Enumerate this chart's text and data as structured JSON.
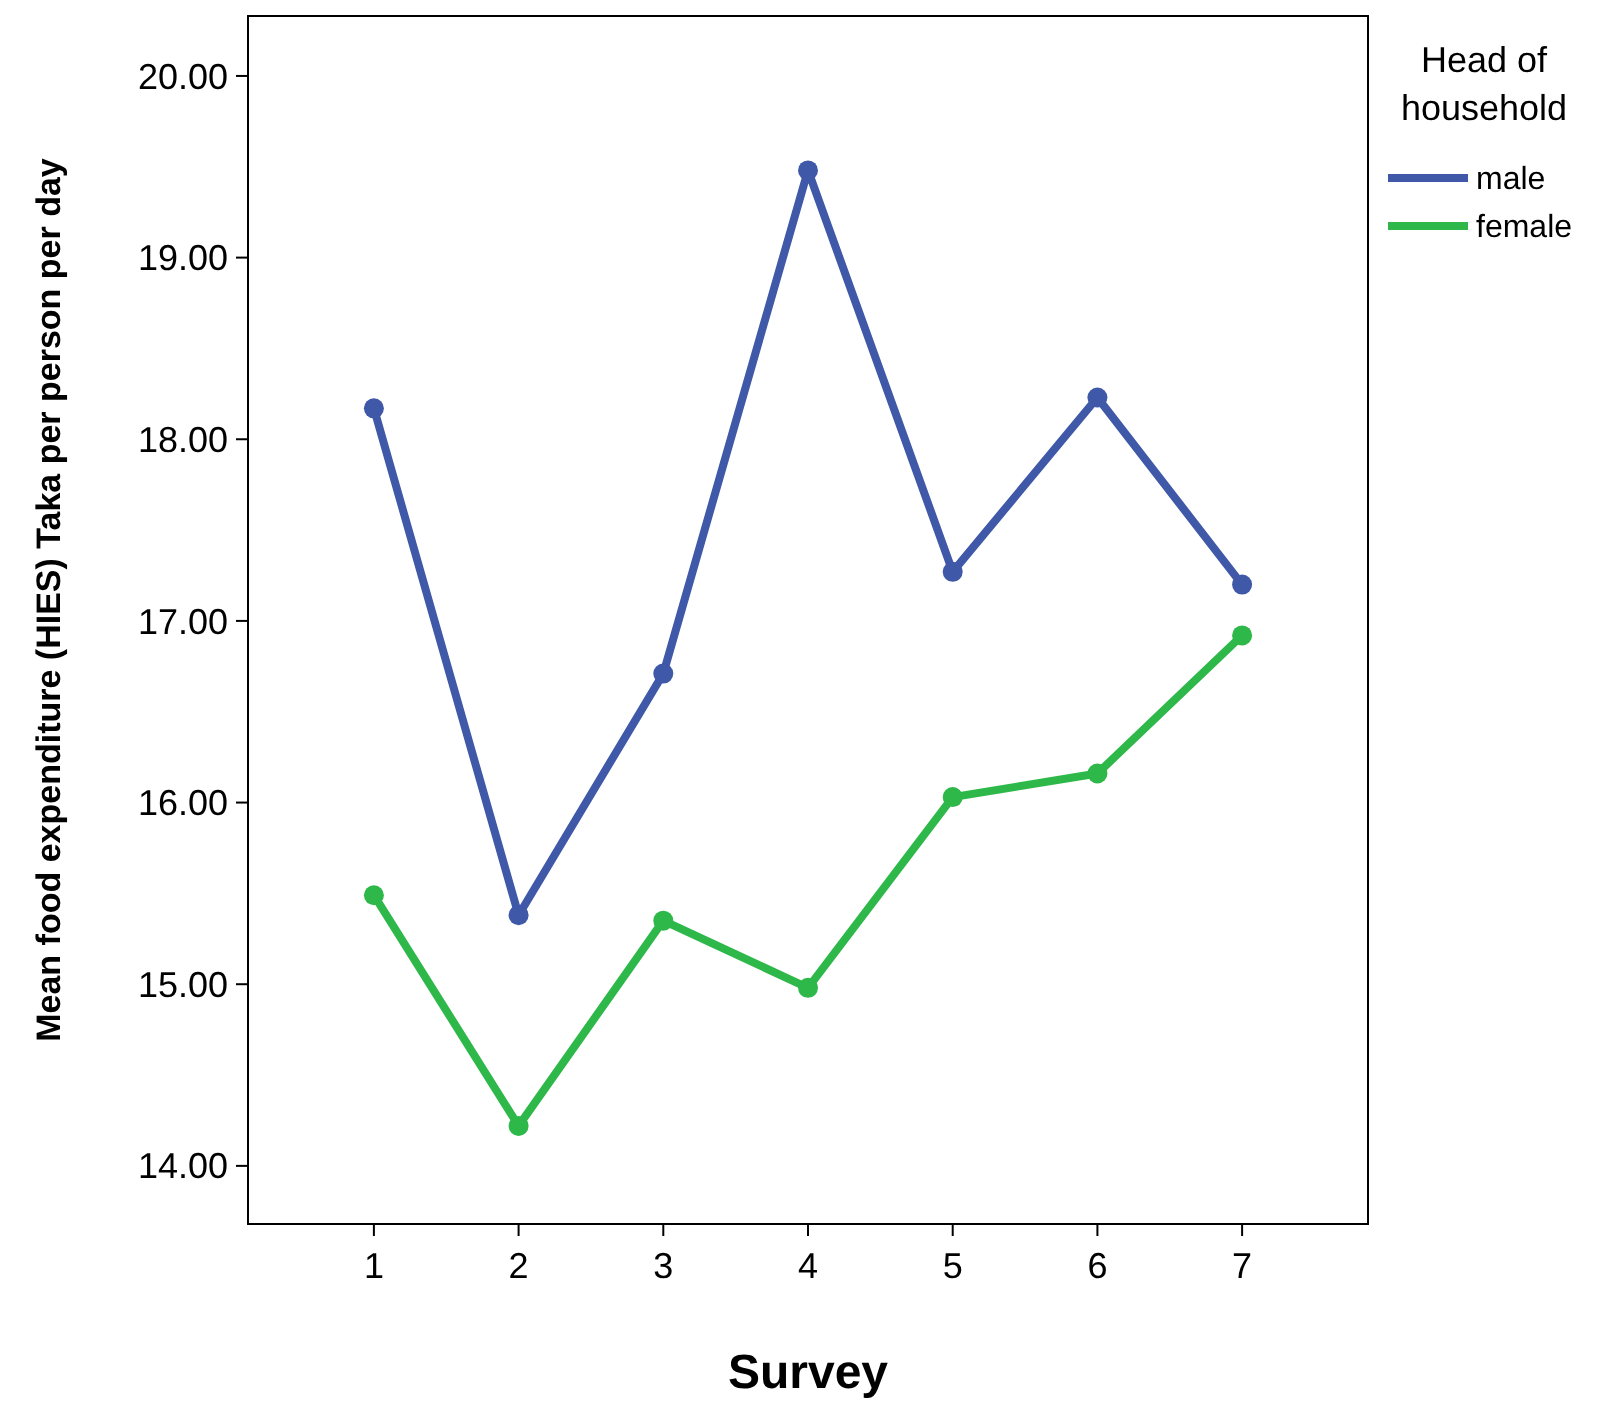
{
  "chart_data": {
    "type": "line",
    "xlabel": "Survey",
    "ylabel": "Mean food expenditure (HIES) Taka per person per day",
    "legend_title": "Head of household",
    "categories": [
      "1",
      "2",
      "3",
      "4",
      "5",
      "6",
      "7"
    ],
    "series": [
      {
        "name": "male",
        "color": "#3f58a8",
        "values": [
          18.17,
          15.38,
          16.71,
          19.48,
          17.27,
          18.23,
          17.2
        ]
      },
      {
        "name": "female",
        "color": "#2eb84a",
        "values": [
          15.49,
          14.22,
          15.35,
          14.98,
          16.03,
          16.16,
          16.92
        ]
      }
    ],
    "ylim": [
      13.68,
      20.33
    ],
    "yticks": [
      {
        "value": 14,
        "label": "14.00"
      },
      {
        "value": 15,
        "label": "15.00"
      },
      {
        "value": 16,
        "label": "16.00"
      },
      {
        "value": 17,
        "label": "17.00"
      },
      {
        "value": 18,
        "label": "18.00"
      },
      {
        "value": 19,
        "label": "19.00"
      },
      {
        "value": 20,
        "label": "20.00"
      }
    ],
    "marker": "circle",
    "line_style": "solid",
    "legend": "top right",
    "grid": false
  }
}
